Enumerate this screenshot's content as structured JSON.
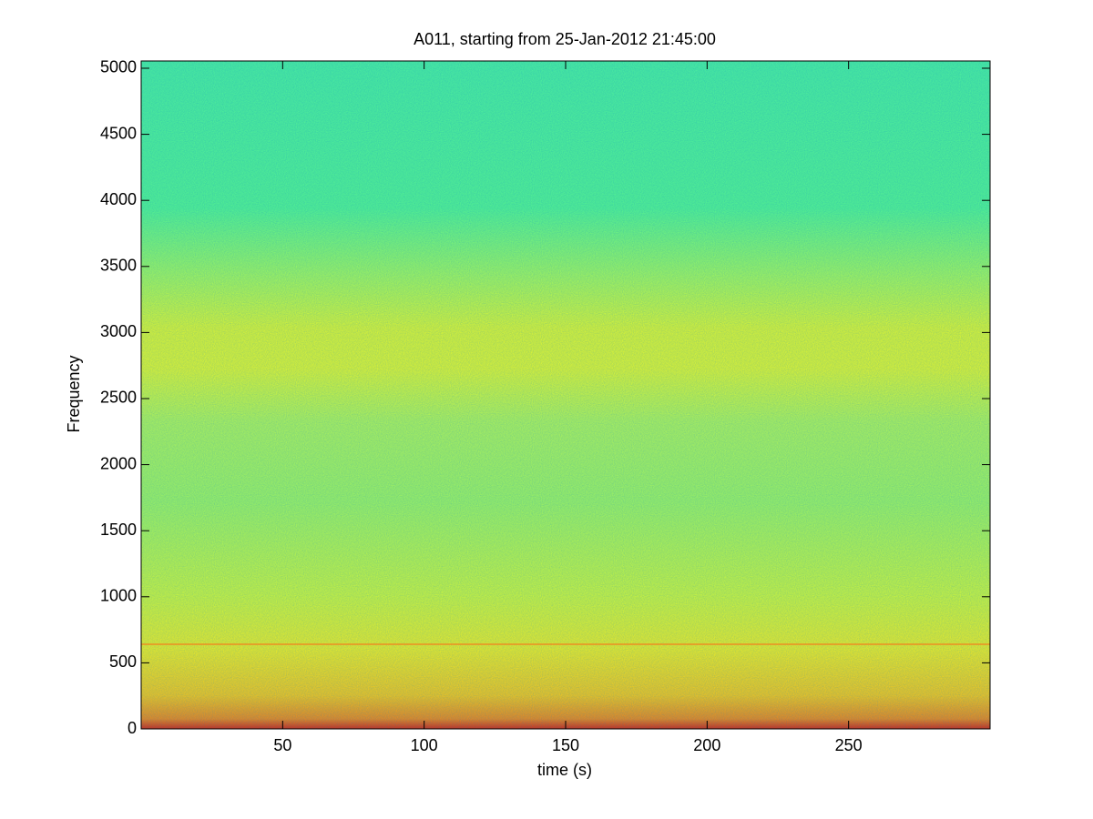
{
  "chart_data": {
    "type": "spectrogram",
    "title": "A011, starting from 25-Jan-2012 21:45:00",
    "x_label": "time (s)",
    "y_label": "Frequency",
    "xlim": [
      0,
      300
    ],
    "xticks": [
      50,
      100,
      150,
      200,
      250
    ],
    "ylim": [
      0,
      5055
    ],
    "yticks": [
      0,
      500,
      1000,
      1500,
      2000,
      2500,
      3000,
      3500,
      4000,
      4500,
      5000
    ]
  }
}
